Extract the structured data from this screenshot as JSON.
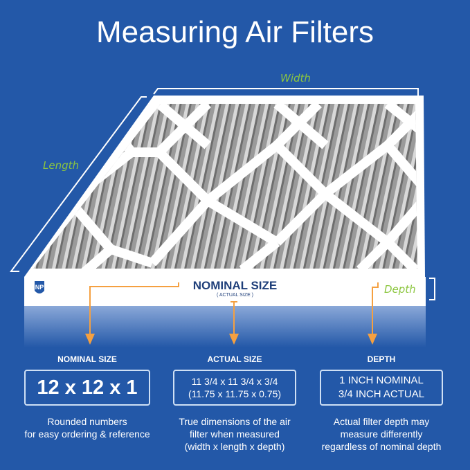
{
  "title": "Measuring Air Filters",
  "diagram": {
    "width_label": "Width",
    "length_label": "Length",
    "depth_label": "Depth",
    "front_label": "NOMINAL SIZE",
    "front_sublabel": "( ACTUAL SIZE )",
    "logo_text": "NP",
    "colors": {
      "background": "#2358a8",
      "accent_label": "#8cc63f",
      "arrow": "#f5a040",
      "front_text": "#1f3f7a"
    }
  },
  "columns": [
    {
      "heading": "NOMINAL SIZE",
      "box_lines": [
        "12 x 12 x 1"
      ],
      "description": [
        "Rounded numbers",
        "for easy ordering & reference"
      ]
    },
    {
      "heading": "ACTUAL SIZE",
      "box_lines": [
        "11 3/4 x 11 3/4 x 3/4",
        "(11.75 x 11.75 x 0.75)"
      ],
      "description": [
        "True dimensions of the air",
        "filter when measured",
        "(width x length x depth)"
      ]
    },
    {
      "heading": "DEPTH",
      "box_lines": [
        "1 INCH NOMINAL",
        "3/4 INCH ACTUAL"
      ],
      "description": [
        "Actual filter depth may",
        "measure differently",
        "regardless of nominal depth"
      ]
    }
  ]
}
